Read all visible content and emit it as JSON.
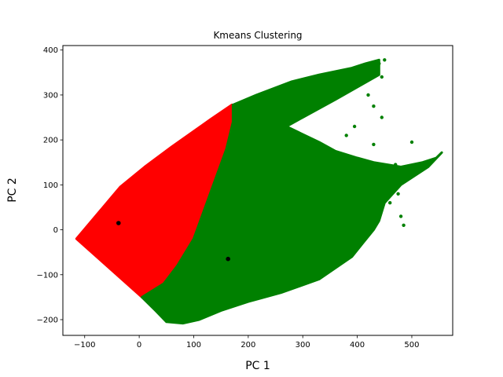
{
  "chart_data": {
    "type": "scatter",
    "title": "Kmeans Clustering",
    "xlabel": "PC 1",
    "ylabel": "PC 2",
    "xlim": [
      -140,
      575
    ],
    "ylim": [
      -235,
      410
    ],
    "xticks": [
      -100,
      0,
      100,
      200,
      300,
      400,
      500
    ],
    "yticks": [
      -200,
      -100,
      0,
      100,
      200,
      300,
      400
    ],
    "xtick_labels": [
      "−100",
      "0",
      "100",
      "200",
      "300",
      "400",
      "500"
    ],
    "ytick_labels": [
      "−200",
      "−100",
      "0",
      "100",
      "200",
      "300",
      "400"
    ],
    "grid": false,
    "legend": "none",
    "series": [
      {
        "color": "#ff0000",
        "region": [
          [
            -115,
            -20
          ],
          [
            -35,
            95
          ],
          [
            10,
            140
          ],
          [
            60,
            185
          ],
          [
            130,
            245
          ],
          [
            170,
            278
          ],
          [
            172,
            240
          ],
          [
            160,
            180
          ],
          [
            130,
            80
          ],
          [
            100,
            -20
          ],
          [
            70,
            -80
          ],
          [
            45,
            -120
          ],
          [
            5,
            -150
          ]
        ]
      },
      {
        "color": "#008000",
        "region": [
          [
            5,
            -150
          ],
          [
            45,
            -120
          ],
          [
            70,
            -80
          ],
          [
            100,
            -20
          ],
          [
            130,
            80
          ],
          [
            160,
            180
          ],
          [
            172,
            240
          ],
          [
            172,
            278
          ],
          [
            215,
            300
          ],
          [
            280,
            330
          ],
          [
            330,
            345
          ],
          [
            390,
            360
          ],
          [
            415,
            370
          ],
          [
            440,
            378
          ],
          [
            440,
            345
          ],
          [
            360,
            290
          ],
          [
            300,
            250
          ],
          [
            270,
            230
          ],
          [
            330,
            195
          ],
          [
            360,
            175
          ],
          [
            400,
            160
          ],
          [
            430,
            150
          ],
          [
            480,
            140
          ],
          [
            520,
            150
          ],
          [
            545,
            160
          ],
          [
            555,
            172
          ],
          [
            530,
            140
          ],
          [
            480,
            100
          ],
          [
            450,
            60
          ],
          [
            440,
            20
          ],
          [
            430,
            0
          ],
          [
            410,
            -30
          ],
          [
            390,
            -60
          ],
          [
            330,
            -110
          ],
          [
            260,
            -140
          ],
          [
            200,
            -160
          ],
          [
            150,
            -180
          ],
          [
            110,
            -200
          ],
          [
            80,
            -208
          ],
          [
            50,
            -205
          ],
          [
            30,
            -180
          ]
        ],
        "points": [
          [
            325,
            150
          ],
          [
            340,
            185
          ],
          [
            355,
            165
          ],
          [
            335,
            120
          ],
          [
            400,
            100
          ],
          [
            380,
            210
          ],
          [
            395,
            230
          ],
          [
            420,
            140
          ],
          [
            430,
            190
          ],
          [
            445,
            250
          ],
          [
            465,
            130
          ],
          [
            470,
            105
          ],
          [
            475,
            80
          ],
          [
            480,
            30
          ],
          [
            485,
            10
          ],
          [
            460,
            60
          ],
          [
            500,
            195
          ],
          [
            470,
            145
          ],
          [
            430,
            275
          ],
          [
            445,
            340
          ],
          [
            420,
            300
          ],
          [
            405,
            360
          ],
          [
            440,
            370
          ],
          [
            450,
            378
          ]
        ]
      }
    ],
    "centroids": [
      {
        "x": -38,
        "y": 15,
        "color": "#000000"
      },
      {
        "x": 163,
        "y": -65,
        "color": "#000000"
      }
    ]
  }
}
